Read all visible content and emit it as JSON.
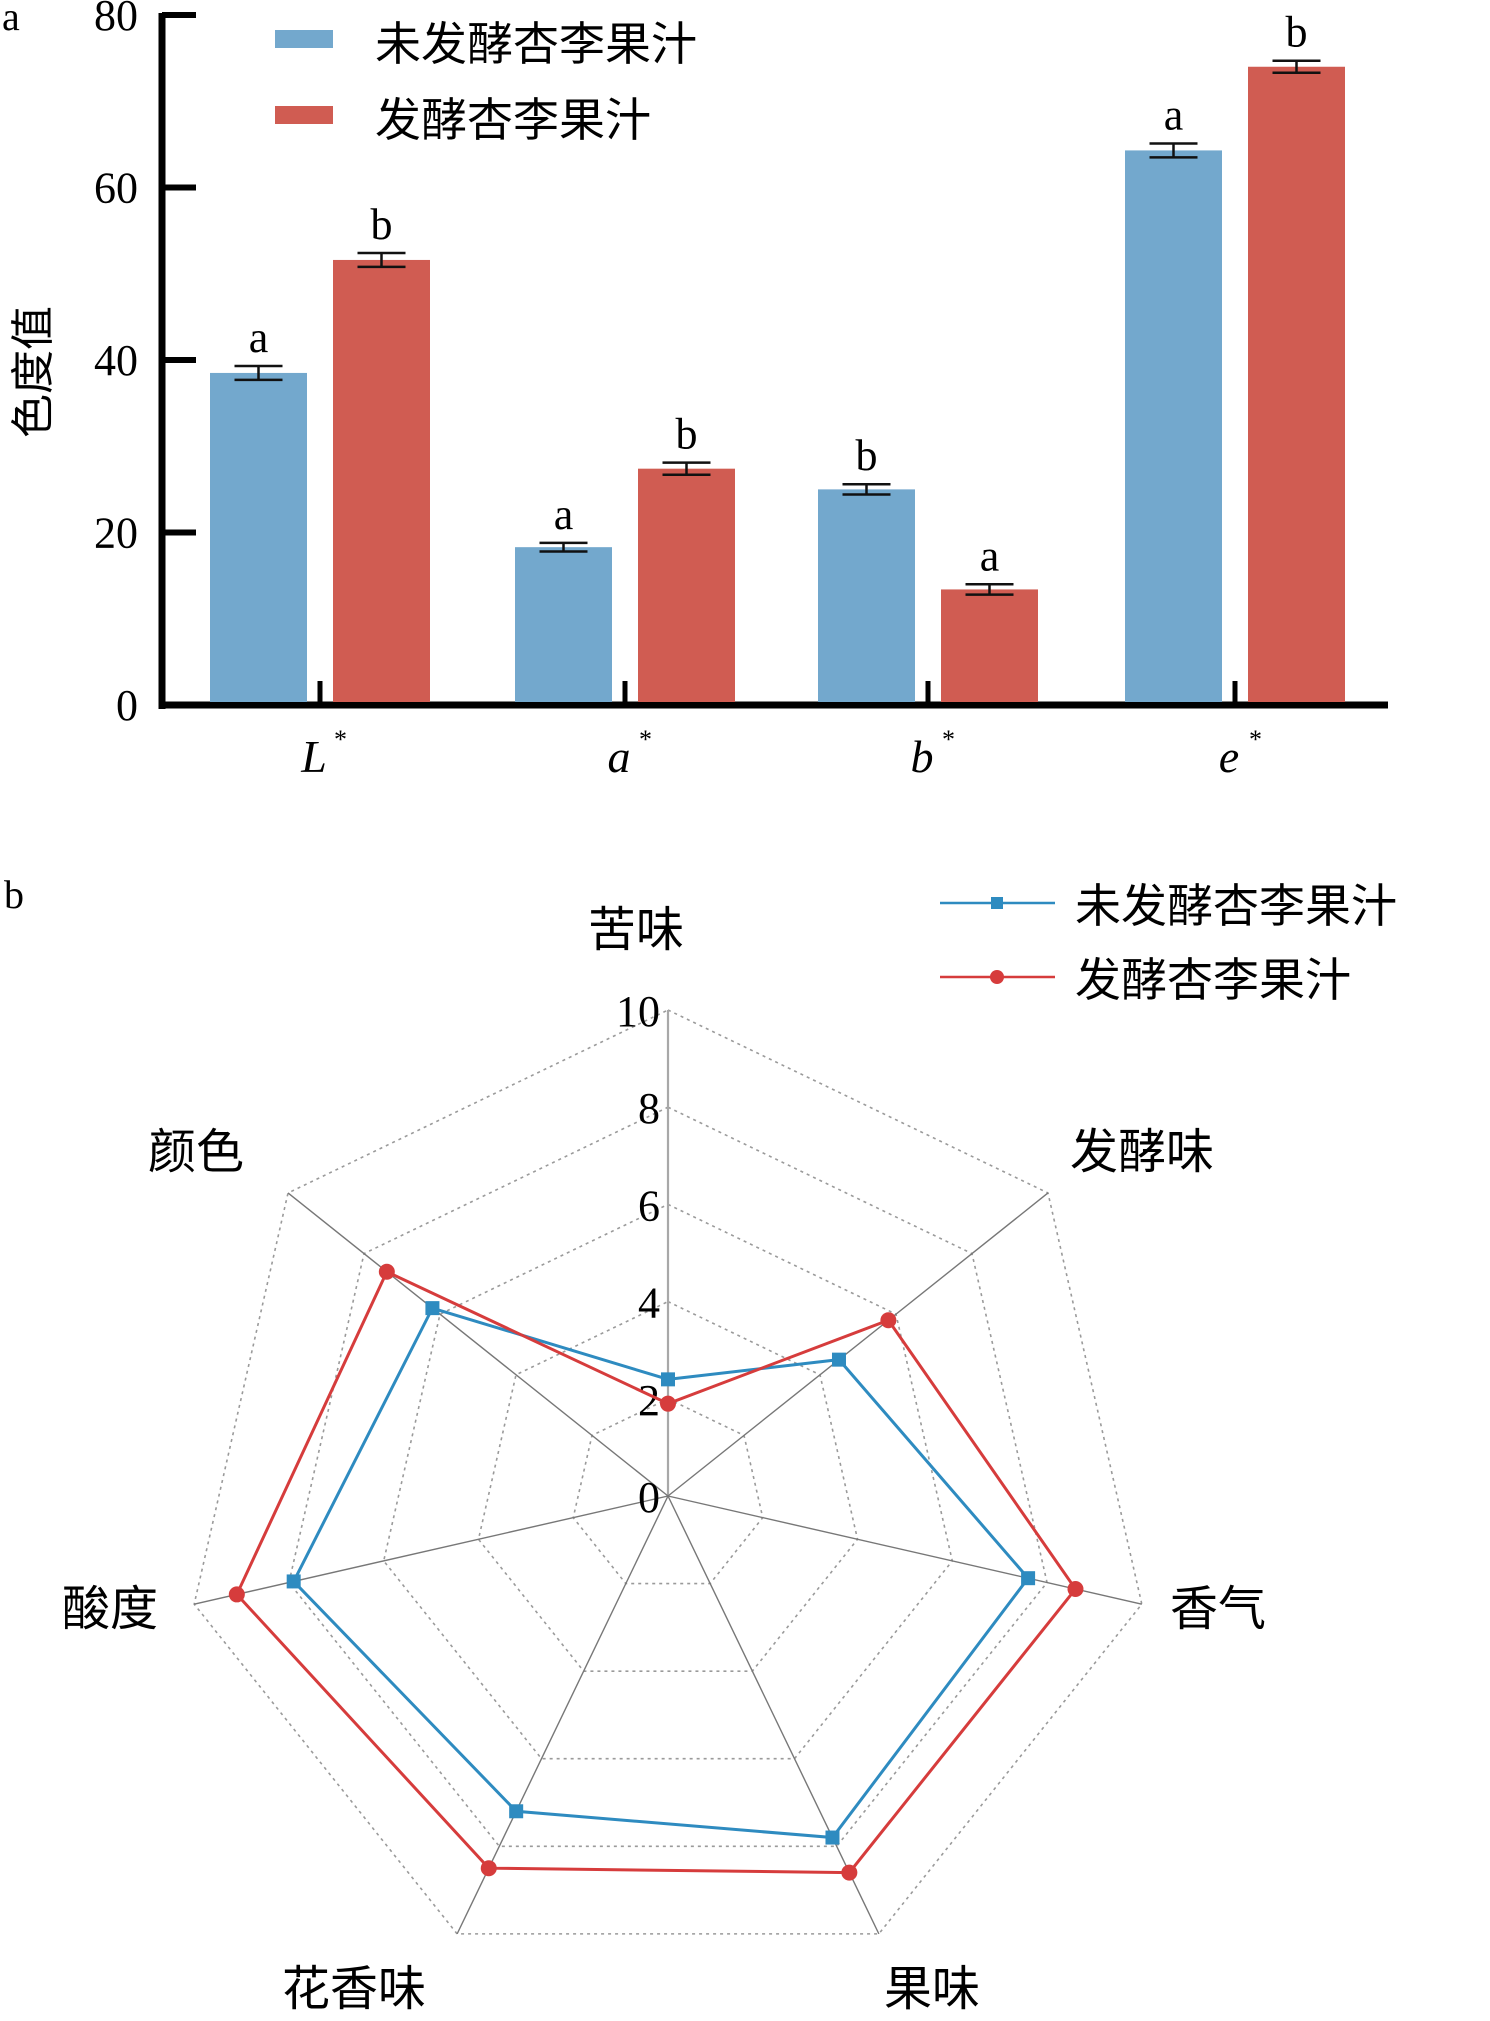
{
  "chart_data": [
    {
      "panel_label": "a",
      "type": "bar",
      "title": "",
      "xlabel": "",
      "ylabel": "色度值",
      "ylim": [
        0,
        80
      ],
      "yticks": [
        "0",
        "20",
        "40",
        "60",
        "80"
      ],
      "categories": [
        {
          "base": "L",
          "sup": "*"
        },
        {
          "base": "a",
          "sup": "*"
        },
        {
          "base": "b",
          "sup": "*"
        },
        {
          "base": "e",
          "sup": "*"
        }
      ],
      "series": [
        {
          "name": "未发酵杏李果汁",
          "color": "#73a8cd",
          "values": [
            38.5,
            18.3,
            25.0,
            64.3
          ],
          "errors": [
            0.8,
            0.5,
            0.6,
            0.8
          ],
          "letters": [
            "a",
            "a",
            "b",
            "a"
          ]
        },
        {
          "name": "发酵杏李果汁",
          "color": "#d05c52",
          "values": [
            51.6,
            27.4,
            13.4,
            74.0
          ],
          "errors": [
            0.8,
            0.7,
            0.6,
            0.7
          ],
          "letters": [
            "b",
            "b",
            "a",
            "b"
          ]
        }
      ],
      "legend": "top"
    },
    {
      "panel_label": "b",
      "type": "radar",
      "title": "",
      "axes": [
        "苦味",
        "发酵味",
        "香气",
        "果味",
        "花香味",
        "酸度",
        "颜色"
      ],
      "rlim": [
        0,
        10
      ],
      "rticks": [
        "0",
        "2",
        "4",
        "6",
        "8",
        "10"
      ],
      "series": [
        {
          "name": "未发酵杏李果汁",
          "color": "#2e8bc0",
          "marker": "square",
          "values": [
            2.4,
            4.5,
            7.6,
            7.8,
            7.2,
            7.9,
            6.2
          ]
        },
        {
          "name": "发酵杏李果汁",
          "color": "#d63c3c",
          "marker": "circle",
          "values": [
            1.9,
            5.8,
            8.6,
            8.6,
            8.5,
            9.1,
            7.4
          ]
        }
      ],
      "legend": "top-right"
    }
  ]
}
